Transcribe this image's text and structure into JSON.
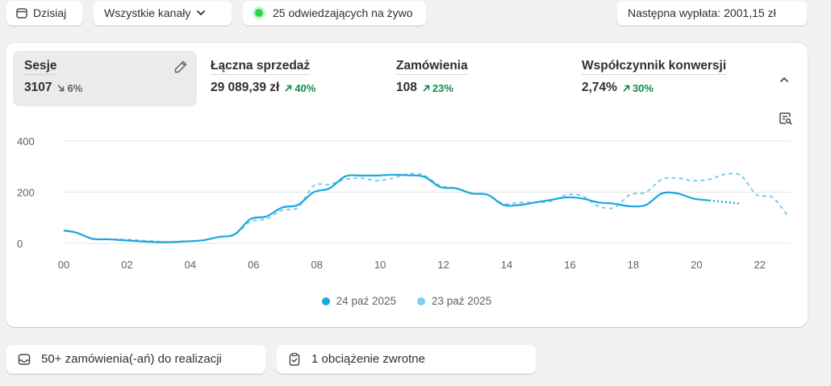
{
  "topbar": {
    "date_label": "Dzisiaj",
    "channels_label": "Wszystkie kanały",
    "live_label": "25 odwiedzających na żywo",
    "payout_label": "Następna wypłata: 2001,15 zł"
  },
  "metrics": [
    {
      "label": "Sesje",
      "value": "3107",
      "change": "6%",
      "direction": "down"
    },
    {
      "label": "Łączna sprzedaż",
      "value": "29 089,39 zł",
      "change": "40%",
      "direction": "up"
    },
    {
      "label": "Zamówienia",
      "value": "108",
      "change": "23%",
      "direction": "up"
    },
    {
      "label": "Współczynnik konwersji",
      "value": "2,74%",
      "change": "30%",
      "direction": "up"
    }
  ],
  "colors": {
    "current": "#1ba6e0",
    "previous": "#7ccdee",
    "up": "#0c8a4d",
    "live_dot": "#2ad34a"
  },
  "icons": {
    "date": "calendar-icon",
    "channels": "chevron-down-icon",
    "edit": "pencil-icon",
    "collapse": "chevron-up-icon",
    "chart_action": "chart-magnifier-icon",
    "orders": "inbox-icon",
    "chargeback": "clipboard-check-icon"
  },
  "chart_data": {
    "type": "line",
    "x_ticks": [
      "00",
      "02",
      "04",
      "06",
      "08",
      "10",
      "12",
      "14",
      "16",
      "18",
      "20",
      "22"
    ],
    "y_ticks": [
      "0",
      "200",
      "400"
    ],
    "ylim": [
      0,
      400
    ],
    "xlim": [
      0,
      23
    ],
    "grid": true,
    "legend_position": "bottom",
    "series": [
      {
        "name": "24 paź 2025",
        "style": "solid",
        "x": [
          0,
          0.4,
          0.9,
          1.4,
          1.9,
          2.4,
          2.9,
          3.4,
          3.9,
          4.4,
          4.9,
          5.4,
          5.9,
          6.4,
          6.9,
          7.4,
          7.9,
          8.4,
          8.9,
          9.4,
          9.9,
          10.4,
          10.9,
          11.4,
          11.9,
          12.4,
          12.9,
          13.4,
          13.9,
          14.4,
          14.9,
          15.4,
          15.9,
          16.4,
          16.9,
          17.4,
          17.9,
          18.4,
          18.9,
          19.4,
          19.9,
          20.4
        ],
        "y": [
          50,
          42,
          18,
          16,
          12,
          8,
          5,
          5,
          8,
          12,
          25,
          35,
          95,
          105,
          140,
          150,
          200,
          215,
          262,
          265,
          265,
          268,
          266,
          260,
          220,
          215,
          195,
          190,
          150,
          150,
          160,
          170,
          180,
          175,
          160,
          155,
          145,
          150,
          195,
          195,
          175,
          168
        ]
      },
      {
        "name": "",
        "style": "dotted",
        "x": [
          20.4,
          20.9,
          21.4
        ],
        "y": [
          168,
          162,
          155
        ]
      },
      {
        "name": "23 paź 2025",
        "style": "dashed",
        "x": [
          0,
          0.4,
          0.9,
          1.4,
          1.9,
          2.4,
          2.9,
          3.4,
          3.9,
          4.4,
          4.9,
          5.4,
          5.9,
          6.4,
          6.9,
          7.4,
          7.9,
          8.4,
          8.9,
          9.4,
          9.9,
          10.4,
          10.9,
          11.4,
          11.9,
          12.4,
          12.9,
          13.4,
          13.9,
          14.4,
          14.9,
          15.4,
          15.9,
          16.4,
          16.9,
          17.4,
          17.9,
          18.4,
          18.9,
          19.4,
          19.9,
          20.4,
          20.9,
          21.4,
          21.9,
          22.4,
          22.9
        ],
        "y": [
          50,
          42,
          18,
          16,
          15,
          12,
          8,
          5,
          8,
          12,
          25,
          35,
          85,
          95,
          130,
          140,
          225,
          230,
          250,
          255,
          245,
          255,
          272,
          265,
          225,
          215,
          195,
          190,
          155,
          160,
          160,
          165,
          190,
          185,
          145,
          140,
          190,
          200,
          250,
          255,
          245,
          250,
          270,
          265,
          190,
          180,
          105
        ]
      }
    ]
  },
  "bottom": {
    "orders_label": "50+ zamówienia(-ań) do realizacji",
    "chargeback_label": "1 obciążenie zwrotne"
  }
}
